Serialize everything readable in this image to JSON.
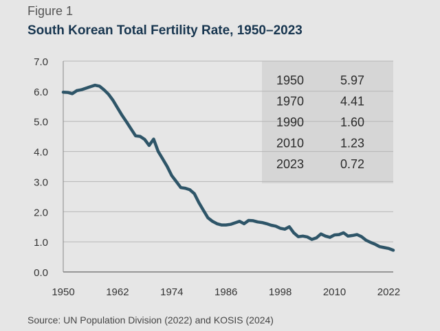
{
  "figure_label": "Figure 1",
  "title": "South Korean Total Fertility Rate, 1950–2023",
  "source": "Source: UN Population Division (2022) and KOSIS (2024)",
  "colors": {
    "line": "#2e5568",
    "inset_bg": "#d6d6d6",
    "background": "#e6e6e6",
    "title": "#17354f"
  },
  "chart_data": {
    "type": "line",
    "title": "South Korean Total Fertility Rate, 1950–2023",
    "xlabel": "",
    "ylabel": "",
    "xlim": [
      1950,
      2023
    ],
    "ylim": [
      0,
      7
    ],
    "x_ticks": [
      "1950",
      "1962",
      "1974",
      "1986",
      "1998",
      "2010",
      "2022"
    ],
    "y_ticks": [
      "0.0",
      "1.0",
      "2.0",
      "3.0",
      "4.0",
      "5.0",
      "6.0",
      "7.0"
    ],
    "grid": true,
    "series": [
      {
        "name": "Total Fertility Rate",
        "x": [
          1950,
          1951,
          1952,
          1953,
          1954,
          1955,
          1956,
          1957,
          1958,
          1959,
          1960,
          1961,
          1962,
          1963,
          1964,
          1965,
          1966,
          1967,
          1968,
          1969,
          1970,
          1971,
          1972,
          1973,
          1974,
          1975,
          1976,
          1977,
          1978,
          1979,
          1980,
          1981,
          1982,
          1983,
          1984,
          1985,
          1986,
          1987,
          1988,
          1989,
          1990,
          1991,
          1992,
          1993,
          1994,
          1995,
          1996,
          1997,
          1998,
          1999,
          2000,
          2001,
          2002,
          2003,
          2004,
          2005,
          2006,
          2007,
          2008,
          2009,
          2010,
          2011,
          2012,
          2013,
          2014,
          2015,
          2016,
          2017,
          2018,
          2019,
          2020,
          2021,
          2022,
          2023
        ],
        "values": [
          5.97,
          5.96,
          5.92,
          6.02,
          6.05,
          6.1,
          6.15,
          6.2,
          6.17,
          6.05,
          5.9,
          5.7,
          5.45,
          5.2,
          4.98,
          4.75,
          4.52,
          4.5,
          4.4,
          4.2,
          4.41,
          4.0,
          3.75,
          3.5,
          3.2,
          3.0,
          2.8,
          2.78,
          2.73,
          2.6,
          2.3,
          2.05,
          1.8,
          1.68,
          1.6,
          1.56,
          1.56,
          1.58,
          1.63,
          1.68,
          1.6,
          1.71,
          1.7,
          1.66,
          1.64,
          1.6,
          1.55,
          1.52,
          1.45,
          1.42,
          1.5,
          1.3,
          1.17,
          1.19,
          1.16,
          1.08,
          1.13,
          1.26,
          1.19,
          1.15,
          1.23,
          1.24,
          1.3,
          1.19,
          1.21,
          1.24,
          1.17,
          1.05,
          0.98,
          0.92,
          0.84,
          0.81,
          0.78,
          0.72
        ]
      }
    ],
    "table": [
      [
        "1950",
        "5.97"
      ],
      [
        "1970",
        "4.41"
      ],
      [
        "1990",
        "1.60"
      ],
      [
        "2010",
        "1.23"
      ],
      [
        "2023",
        "0.72"
      ]
    ]
  }
}
